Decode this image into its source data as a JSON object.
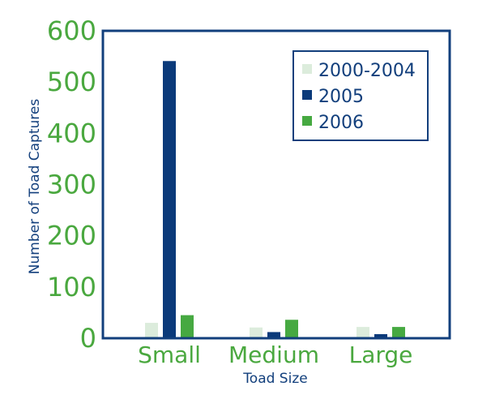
{
  "chart_data": {
    "type": "bar",
    "title": "",
    "xlabel": "Toad Size",
    "ylabel": "Number of Toad Captures",
    "categories": [
      "Small",
      "Medium",
      "Large"
    ],
    "series": [
      {
        "name": "2000-2004",
        "values": [
          30,
          21,
          22
        ],
        "color": "#dcecdc"
      },
      {
        "name": "2005",
        "values": [
          541,
          12,
          8
        ],
        "color": "#0b3a7a"
      },
      {
        "name": "2006",
        "values": [
          45,
          36,
          22
        ],
        "color": "#46a941"
      }
    ],
    "ylim": [
      0,
      600
    ],
    "yticks": [
      "0",
      "100",
      "200",
      "300",
      "400",
      "500",
      "600"
    ],
    "grid": false,
    "legend_position": "top-right",
    "colors": {
      "tick_label": "#4aa83f",
      "axis_title": "#123f7c",
      "frame": "#123f7c"
    }
  }
}
